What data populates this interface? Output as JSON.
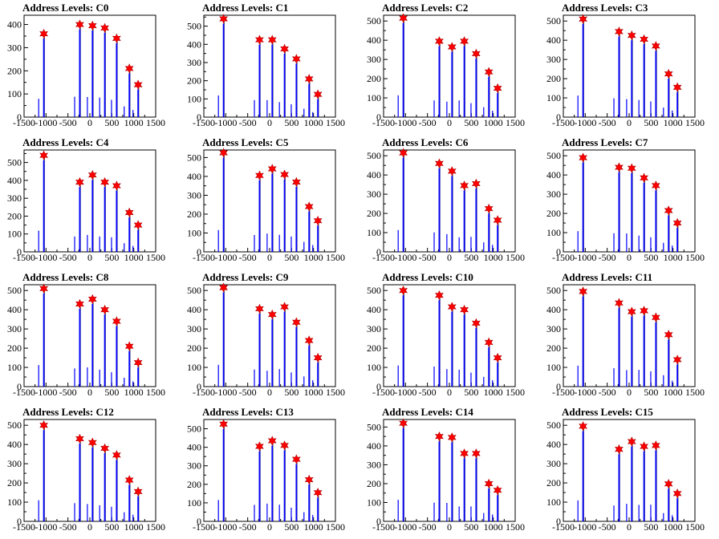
{
  "colors": {
    "histogram": "#0000ff",
    "envelope": "#000000",
    "marker": "#ff0000",
    "frame": "#000000"
  },
  "chart_data": [
    {
      "type": "bar",
      "title": "Address Levels: C0",
      "xlim": [
        -1500,
        1500
      ],
      "ylim": [
        0,
        440
      ],
      "xticks": [
        "-1500",
        "-1000",
        "-500",
        "0",
        "500",
        "1000",
        "1500"
      ],
      "yticks": [
        "0",
        "100",
        "200",
        "300",
        "400"
      ],
      "peaks": [
        {
          "x": -1050,
          "y": 360
        },
        {
          "x": -230,
          "y": 400
        },
        {
          "x": 60,
          "y": 395
        },
        {
          "x": 340,
          "y": 385
        },
        {
          "x": 610,
          "y": 340
        },
        {
          "x": 900,
          "y": 210
        },
        {
          "x": 1100,
          "y": 140
        }
      ]
    },
    {
      "type": "bar",
      "title": "Address Levels: C1",
      "xlim": [
        -1500,
        1500
      ],
      "ylim": [
        0,
        560
      ],
      "xticks": [
        "-1500",
        "-1000",
        "-500",
        "0",
        "500",
        "1000",
        "1500"
      ],
      "yticks": [
        "0",
        "100",
        "200",
        "300",
        "400",
        "500"
      ],
      "peaks": [
        {
          "x": -1050,
          "y": 540
        },
        {
          "x": -230,
          "y": 425
        },
        {
          "x": 60,
          "y": 425
        },
        {
          "x": 340,
          "y": 375
        },
        {
          "x": 610,
          "y": 320
        },
        {
          "x": 900,
          "y": 210
        },
        {
          "x": 1100,
          "y": 125
        }
      ]
    },
    {
      "type": "bar",
      "title": "Address Levels: C2",
      "xlim": [
        -1500,
        1500
      ],
      "ylim": [
        0,
        530
      ],
      "xticks": [
        "-1500",
        "-1000",
        "-500",
        "0",
        "500",
        "1000",
        "1500"
      ],
      "yticks": [
        "0",
        "100",
        "200",
        "300",
        "400",
        "500"
      ],
      "peaks": [
        {
          "x": -1050,
          "y": 515
        },
        {
          "x": -230,
          "y": 395
        },
        {
          "x": 60,
          "y": 365
        },
        {
          "x": 340,
          "y": 395
        },
        {
          "x": 610,
          "y": 330
        },
        {
          "x": 900,
          "y": 235
        },
        {
          "x": 1100,
          "y": 150
        }
      ]
    },
    {
      "type": "bar",
      "title": "Address Levels: C3",
      "xlim": [
        -1500,
        1500
      ],
      "ylim": [
        0,
        530
      ],
      "xticks": [
        "-1500",
        "-1000",
        "-500",
        "0",
        "500",
        "1000",
        "1500"
      ],
      "yticks": [
        "0",
        "100",
        "200",
        "300",
        "400",
        "500"
      ],
      "peaks": [
        {
          "x": -1050,
          "y": 510
        },
        {
          "x": -230,
          "y": 445
        },
        {
          "x": 60,
          "y": 425
        },
        {
          "x": 340,
          "y": 405
        },
        {
          "x": 610,
          "y": 370
        },
        {
          "x": 900,
          "y": 225
        },
        {
          "x": 1100,
          "y": 155
        }
      ]
    },
    {
      "type": "bar",
      "title": "Address Levels: C4",
      "xlim": [
        -1500,
        1500
      ],
      "ylim": [
        0,
        570
      ],
      "xticks": [
        "-1500",
        "-1000",
        "-500",
        "0",
        "500",
        "1000",
        "1500"
      ],
      "yticks": [
        "0",
        "100",
        "200",
        "300",
        "400",
        "500"
      ],
      "peaks": [
        {
          "x": -1050,
          "y": 540
        },
        {
          "x": -230,
          "y": 390
        },
        {
          "x": 60,
          "y": 430
        },
        {
          "x": 340,
          "y": 390
        },
        {
          "x": 610,
          "y": 370
        },
        {
          "x": 900,
          "y": 220
        },
        {
          "x": 1100,
          "y": 150
        }
      ]
    },
    {
      "type": "bar",
      "title": "Address Levels: C5",
      "xlim": [
        -1500,
        1500
      ],
      "ylim": [
        0,
        540
      ],
      "xticks": [
        "-1500",
        "-1000",
        "-500",
        "0",
        "500",
        "1000",
        "1500"
      ],
      "yticks": [
        "0",
        "100",
        "200",
        "300",
        "400",
        "500"
      ],
      "peaks": [
        {
          "x": -1050,
          "y": 525
        },
        {
          "x": -230,
          "y": 405
        },
        {
          "x": 60,
          "y": 440
        },
        {
          "x": 340,
          "y": 410
        },
        {
          "x": 610,
          "y": 370
        },
        {
          "x": 900,
          "y": 240
        },
        {
          "x": 1100,
          "y": 165
        }
      ]
    },
    {
      "type": "bar",
      "title": "Address Levels: C6",
      "xlim": [
        -1500,
        1500
      ],
      "ylim": [
        0,
        530
      ],
      "xticks": [
        "-1500",
        "-1000",
        "-500",
        "0",
        "500",
        "1000",
        "1500"
      ],
      "yticks": [
        "0",
        "100",
        "200",
        "300",
        "400",
        "500"
      ],
      "peaks": [
        {
          "x": -1050,
          "y": 515
        },
        {
          "x": -230,
          "y": 460
        },
        {
          "x": 60,
          "y": 420
        },
        {
          "x": 340,
          "y": 345
        },
        {
          "x": 610,
          "y": 355
        },
        {
          "x": 900,
          "y": 225
        },
        {
          "x": 1100,
          "y": 165
        }
      ]
    },
    {
      "type": "bar",
      "title": "Address Levels: C7",
      "xlim": [
        -1500,
        1500
      ],
      "ylim": [
        0,
        530
      ],
      "xticks": [
        "-1500",
        "-1000",
        "-500",
        "0",
        "500",
        "1000",
        "1500"
      ],
      "yticks": [
        "0",
        "100",
        "200",
        "300",
        "400",
        "500"
      ],
      "peaks": [
        {
          "x": -1050,
          "y": 490
        },
        {
          "x": -230,
          "y": 440
        },
        {
          "x": 60,
          "y": 435
        },
        {
          "x": 340,
          "y": 385
        },
        {
          "x": 610,
          "y": 345
        },
        {
          "x": 900,
          "y": 215
        },
        {
          "x": 1100,
          "y": 150
        }
      ]
    },
    {
      "type": "bar",
      "title": "Address Levels: C8",
      "xlim": [
        -1500,
        1500
      ],
      "ylim": [
        0,
        530
      ],
      "xticks": [
        "-1500",
        "-1000",
        "-500",
        "0",
        "500",
        "1000",
        "1500"
      ],
      "yticks": [
        "0",
        "100",
        "200",
        "300",
        "400",
        "500"
      ],
      "peaks": [
        {
          "x": -1050,
          "y": 510
        },
        {
          "x": -230,
          "y": 430
        },
        {
          "x": 60,
          "y": 455
        },
        {
          "x": 340,
          "y": 400
        },
        {
          "x": 610,
          "y": 340
        },
        {
          "x": 900,
          "y": 210
        },
        {
          "x": 1100,
          "y": 125
        }
      ]
    },
    {
      "type": "bar",
      "title": "Address Levels: C9",
      "xlim": [
        -1500,
        1500
      ],
      "ylim": [
        0,
        530
      ],
      "xticks": [
        "-1500",
        "-1000",
        "-500",
        "0",
        "500",
        "1000",
        "1500"
      ],
      "yticks": [
        "0",
        "100",
        "200",
        "300",
        "400",
        "500"
      ],
      "peaks": [
        {
          "x": -1050,
          "y": 515
        },
        {
          "x": -230,
          "y": 405
        },
        {
          "x": 60,
          "y": 375
        },
        {
          "x": 340,
          "y": 415
        },
        {
          "x": 610,
          "y": 335
        },
        {
          "x": 900,
          "y": 240
        },
        {
          "x": 1100,
          "y": 150
        }
      ]
    },
    {
      "type": "bar",
      "title": "Address Levels: C10",
      "xlim": [
        -1500,
        1500
      ],
      "ylim": [
        0,
        530
      ],
      "xticks": [
        "-1500",
        "-1000",
        "-500",
        "0",
        "500",
        "1000",
        "1500"
      ],
      "yticks": [
        "0",
        "100",
        "200",
        "300",
        "400",
        "500"
      ],
      "peaks": [
        {
          "x": -1050,
          "y": 500
        },
        {
          "x": -230,
          "y": 475
        },
        {
          "x": 60,
          "y": 415
        },
        {
          "x": 340,
          "y": 400
        },
        {
          "x": 610,
          "y": 330
        },
        {
          "x": 900,
          "y": 230
        },
        {
          "x": 1100,
          "y": 150
        }
      ]
    },
    {
      "type": "bar",
      "title": "Address Levels: C11",
      "xlim": [
        -1500,
        1500
      ],
      "ylim": [
        0,
        530
      ],
      "xticks": [
        "-1500",
        "-1000",
        "-500",
        "0",
        "500",
        "1000",
        "1500"
      ],
      "yticks": [
        "0",
        "100",
        "200",
        "300",
        "400",
        "500"
      ],
      "peaks": [
        {
          "x": -1050,
          "y": 495
        },
        {
          "x": -230,
          "y": 435
        },
        {
          "x": 60,
          "y": 390
        },
        {
          "x": 340,
          "y": 395
        },
        {
          "x": 610,
          "y": 360
        },
        {
          "x": 900,
          "y": 270
        },
        {
          "x": 1100,
          "y": 140
        }
      ]
    },
    {
      "type": "bar",
      "title": "Address Levels: C12",
      "xlim": [
        -1500,
        1500
      ],
      "ylim": [
        0,
        530
      ],
      "xticks": [
        "-1500",
        "-1000",
        "-500",
        "0",
        "500",
        "1000",
        "1500"
      ],
      "yticks": [
        "0",
        "100",
        "200",
        "300",
        "400",
        "500"
      ],
      "peaks": [
        {
          "x": -1050,
          "y": 500
        },
        {
          "x": -230,
          "y": 430
        },
        {
          "x": 60,
          "y": 410
        },
        {
          "x": 340,
          "y": 380
        },
        {
          "x": 610,
          "y": 345
        },
        {
          "x": 900,
          "y": 215
        },
        {
          "x": 1100,
          "y": 155
        }
      ]
    },
    {
      "type": "bar",
      "title": "Address Levels: C13",
      "xlim": [
        -1500,
        1500
      ],
      "ylim": [
        0,
        550
      ],
      "xticks": [
        "-1500",
        "-1000",
        "-500",
        "0",
        "500",
        "1000",
        "1500"
      ],
      "yticks": [
        "0",
        "100",
        "200",
        "300",
        "400",
        "500"
      ],
      "peaks": [
        {
          "x": -1050,
          "y": 525
        },
        {
          "x": -230,
          "y": 405
        },
        {
          "x": 60,
          "y": 435
        },
        {
          "x": 340,
          "y": 410
        },
        {
          "x": 610,
          "y": 335
        },
        {
          "x": 900,
          "y": 225
        },
        {
          "x": 1100,
          "y": 155
        }
      ]
    },
    {
      "type": "bar",
      "title": "Address Levels: C14",
      "xlim": [
        -1500,
        1500
      ],
      "ylim": [
        0,
        540
      ],
      "xticks": [
        "-1500",
        "-1000",
        "-500",
        "0",
        "500",
        "1000",
        "1500"
      ],
      "yticks": [
        "0",
        "100",
        "200",
        "300",
        "400",
        "500"
      ],
      "peaks": [
        {
          "x": -1050,
          "y": 520
        },
        {
          "x": -230,
          "y": 450
        },
        {
          "x": 60,
          "y": 445
        },
        {
          "x": 340,
          "y": 360
        },
        {
          "x": 610,
          "y": 360
        },
        {
          "x": 900,
          "y": 200
        },
        {
          "x": 1100,
          "y": 165
        }
      ]
    },
    {
      "type": "bar",
      "title": "Address Levels: C15",
      "xlim": [
        -1500,
        1500
      ],
      "ylim": [
        0,
        530
      ],
      "xticks": [
        "-1500",
        "-1000",
        "-500",
        "0",
        "500",
        "1000",
        "1500"
      ],
      "yticks": [
        "0",
        "100",
        "200",
        "300",
        "400",
        "500"
      ],
      "peaks": [
        {
          "x": -1050,
          "y": 495
        },
        {
          "x": -230,
          "y": 375
        },
        {
          "x": 60,
          "y": 415
        },
        {
          "x": 340,
          "y": 390
        },
        {
          "x": 610,
          "y": 395
        },
        {
          "x": 900,
          "y": 195
        },
        {
          "x": 1100,
          "y": 145
        }
      ]
    }
  ]
}
